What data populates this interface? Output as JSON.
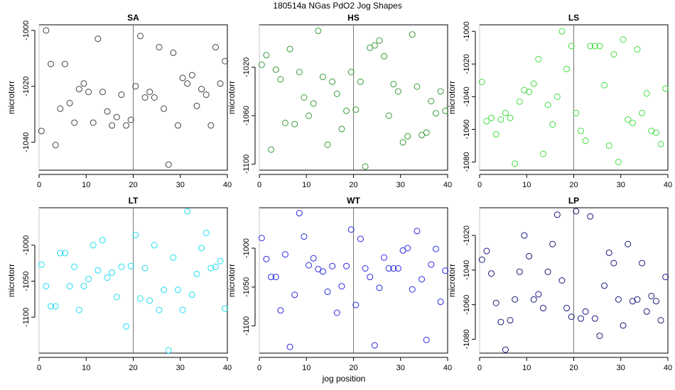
{
  "title": "180514a   NGas PdO2 Jog Shapes",
  "xlabel": "jog position",
  "chart_data": [
    {
      "type": "scatter",
      "title": "SA",
      "ylabel": "microtorr",
      "color": "#444444",
      "xlim": [
        0,
        40
      ],
      "ylim": [
        -1050,
        -998
      ],
      "xticks": [
        0,
        10,
        20,
        30,
        40
      ],
      "yticks": [
        -1000,
        -1020,
        -1040
      ],
      "vline": 20,
      "x": [
        0.5,
        1.5,
        2.5,
        3.5,
        4.5,
        5.5,
        6.5,
        7.5,
        8.5,
        9.5,
        10.5,
        11.5,
        12.5,
        13.5,
        14.5,
        15.5,
        16.5,
        17.5,
        18.5,
        19.5,
        20.5,
        21.5,
        22.5,
        23.5,
        24.5,
        25.5,
        26.5,
        27.5,
        28.5,
        29.5,
        30.5,
        31.5,
        32.5,
        33.5,
        34.5,
        35.5,
        36.5,
        37.5,
        38.5,
        39.5
      ],
      "y": [
        -1036,
        -1000,
        -1012,
        -1041,
        -1028,
        -1012,
        -1026,
        -1033,
        -1021,
        -1019,
        -1022,
        -1033,
        -1003,
        -1022,
        -1029,
        -1034,
        -1031,
        -1023,
        -1034,
        -1032,
        -1020,
        -1002,
        -1024,
        -1022,
        -1024,
        -1006,
        -1028,
        -1048,
        -1008,
        -1034,
        -1017,
        -1019,
        -1016,
        -1027,
        -1021,
        -1023,
        -1034,
        -1006,
        -1019,
        -1011
      ]
    },
    {
      "type": "scatter",
      "title": "HS",
      "ylabel": "microtorr",
      "color": "#3a9a3a",
      "xlim": [
        0,
        40
      ],
      "ylim": [
        -1105,
        -985
      ],
      "xticks": [
        0,
        10,
        20,
        30,
        40
      ],
      "yticks": [
        -1020,
        -1060,
        -1100
      ],
      "vline": 20,
      "x": [
        0.5,
        1.5,
        2.5,
        3.5,
        4.5,
        5.5,
        6.5,
        7.5,
        8.5,
        9.5,
        10.5,
        11.5,
        12.5,
        13.5,
        14.5,
        15.5,
        16.5,
        17.5,
        18.5,
        19.5,
        20.5,
        21.5,
        22.5,
        23.5,
        24.5,
        25.5,
        26.5,
        27.5,
        28.5,
        29.5,
        30.5,
        31.5,
        32.5,
        33.5,
        34.5,
        35.5,
        36.5,
        37.5,
        38.5,
        39.5
      ],
      "y": [
        -1018,
        -1010,
        -1088,
        -1022,
        -1030,
        -1066,
        -1005,
        -1067,
        -1024,
        -1045,
        -1060,
        -1050,
        -990,
        -1028,
        -1084,
        -1032,
        -1042,
        -1071,
        -1056,
        -1024,
        -1055,
        -1032,
        -1102,
        -1004,
        -1002,
        -998,
        -1011,
        -1060,
        -1034,
        -1040,
        -1082,
        -1077,
        -993,
        -1036,
        -1076,
        -1074,
        -1048,
        -1058,
        -1040,
        -1056
      ]
    },
    {
      "type": "scatter",
      "title": "LS",
      "ylabel": "microtorr",
      "color": "#44dd44",
      "xlim": [
        0,
        40
      ],
      "ylim": [
        -1085,
        -996
      ],
      "xticks": [
        0,
        10,
        20,
        30,
        40
      ],
      "yticks": [
        -1000,
        -1020,
        -1040,
        -1060,
        -1080
      ],
      "vline": 20,
      "x": [
        0.5,
        1.5,
        2.5,
        3.5,
        4.5,
        5.5,
        6.5,
        7.5,
        8.5,
        9.5,
        10.5,
        11.5,
        12.5,
        13.5,
        14.5,
        15.5,
        16.5,
        17.5,
        18.5,
        19.5,
        20.5,
        21.5,
        22.5,
        23.5,
        24.5,
        25.5,
        26.5,
        27.5,
        28.5,
        29.5,
        30.5,
        31.5,
        32.5,
        33.5,
        34.5,
        35.5,
        36.5,
        37.5,
        38.5,
        39.5
      ],
      "y": [
        -1031,
        -1055,
        -1053,
        -1063,
        -1054,
        -1050,
        -1053,
        -1081,
        -1043,
        -1036,
        -1037,
        -1032,
        -1017,
        -1075,
        -1045,
        -1057,
        -1040,
        -1000,
        -1023,
        -1009,
        -1050,
        -1061,
        -1067,
        -1009,
        -1009,
        -1009,
        -1033,
        -1070,
        -1014,
        -1080,
        -1005,
        -1054,
        -1056,
        -1011,
        -1050,
        -1038,
        -1061,
        -1062,
        -1069,
        -1035
      ]
    },
    {
      "type": "scatter",
      "title": "LT",
      "ylabel": "microtorr",
      "color": "#22ddee",
      "xlim": [
        0,
        40
      ],
      "ylim": [
        -1150,
        -948
      ],
      "xticks": [
        0,
        10,
        20,
        30,
        40
      ],
      "yticks": [
        -1000,
        -1050,
        -1100
      ],
      "vline": 20,
      "x": [
        0.5,
        1.5,
        2.5,
        3.5,
        4.5,
        5.5,
        6.5,
        7.5,
        8.5,
        9.5,
        10.5,
        11.5,
        12.5,
        13.5,
        14.5,
        15.5,
        16.5,
        17.5,
        18.5,
        19.5,
        20.5,
        21.5,
        22.5,
        23.5,
        24.5,
        25.5,
        26.5,
        27.5,
        28.5,
        29.5,
        30.5,
        31.5,
        32.5,
        33.5,
        34.5,
        35.5,
        36.5,
        37.5,
        38.5,
        39.5
      ],
      "y": [
        -1027,
        -1057,
        -1085,
        -1085,
        -1011,
        -1011,
        -1057,
        -1030,
        -1090,
        -1057,
        -1047,
        -1000,
        -1035,
        -993,
        -1045,
        -1038,
        -1072,
        -1030,
        -1113,
        -1029,
        -986,
        -1074,
        -1032,
        -1077,
        -1000,
        -1090,
        -1062,
        -1146,
        -1017,
        -1062,
        -1090,
        -953,
        -1069,
        -1040,
        -1004,
        -983,
        -1032,
        -1030,
        -1022,
        -1088
      ]
    },
    {
      "type": "scatter",
      "title": "WT",
      "ylabel": "microtorr",
      "color": "#2a2adf",
      "xlim": [
        0,
        40
      ],
      "ylim": [
        -1135,
        -948
      ],
      "xticks": [
        0,
        10,
        20,
        30,
        40
      ],
      "yticks": [
        -1000,
        -1050,
        -1100
      ],
      "vline": 20,
      "x": [
        0.5,
        1.5,
        2.5,
        3.5,
        4.5,
        5.5,
        6.5,
        7.5,
        8.5,
        9.5,
        10.5,
        11.5,
        12.5,
        13.5,
        14.5,
        15.5,
        16.5,
        17.5,
        18.5,
        19.5,
        20.5,
        21.5,
        22.5,
        23.5,
        24.5,
        25.5,
        26.5,
        27.5,
        28.5,
        29.5,
        30.5,
        31.5,
        32.5,
        33.5,
        34.5,
        35.5,
        36.5,
        37.5,
        38.5,
        39.5
      ],
      "y": [
        -987,
        -1014,
        -1037,
        -1037,
        -1080,
        -1008,
        -1127,
        -1060,
        -955,
        -985,
        -1022,
        -1013,
        -1027,
        -1030,
        -1056,
        -1023,
        -1083,
        -1049,
        -1023,
        -976,
        -1073,
        -988,
        -1026,
        -1037,
        -1125,
        -1051,
        -1012,
        -1026,
        -1026,
        -1026,
        -1003,
        -1000,
        -1053,
        -978,
        -1040,
        -1118,
        -1021,
        -1001,
        -1069,
        -1029
      ]
    },
    {
      "type": "scatter",
      "title": "LP",
      "ylabel": "microtorr",
      "color": "#1a1a7a",
      "xlim": [
        0,
        40
      ],
      "ylim": [
        -1088,
        -1004
      ],
      "xticks": [
        0,
        10,
        20,
        30,
        40
      ],
      "yticks": [
        -1020,
        -1040,
        -1060,
        -1080
      ],
      "vline": 20,
      "x": [
        0.5,
        1.5,
        2.5,
        3.5,
        4.5,
        5.5,
        6.5,
        7.5,
        8.5,
        9.5,
        10.5,
        11.5,
        12.5,
        13.5,
        14.5,
        15.5,
        16.5,
        17.5,
        18.5,
        19.5,
        20.5,
        21.5,
        22.5,
        23.5,
        24.5,
        25.5,
        26.5,
        27.5,
        28.5,
        29.5,
        30.5,
        31.5,
        32.5,
        33.5,
        34.5,
        35.5,
        36.5,
        37.5,
        38.5,
        39.5
      ],
      "y": [
        -1034,
        -1029,
        -1042,
        -1059,
        -1070,
        -1086,
        -1069,
        -1057,
        -1041,
        -1020,
        -1032,
        -1057,
        -1054,
        -1062,
        -1041,
        -1025,
        -1008,
        -1046,
        -1062,
        -1067,
        -1006,
        -1068,
        -1064,
        -1009,
        -1068,
        -1078,
        -1049,
        -1030,
        -1036,
        -1057,
        -1072,
        -1025,
        -1058,
        -1057,
        -1036,
        -1064,
        -1055,
        -1058,
        -1069,
        -1044
      ]
    }
  ]
}
